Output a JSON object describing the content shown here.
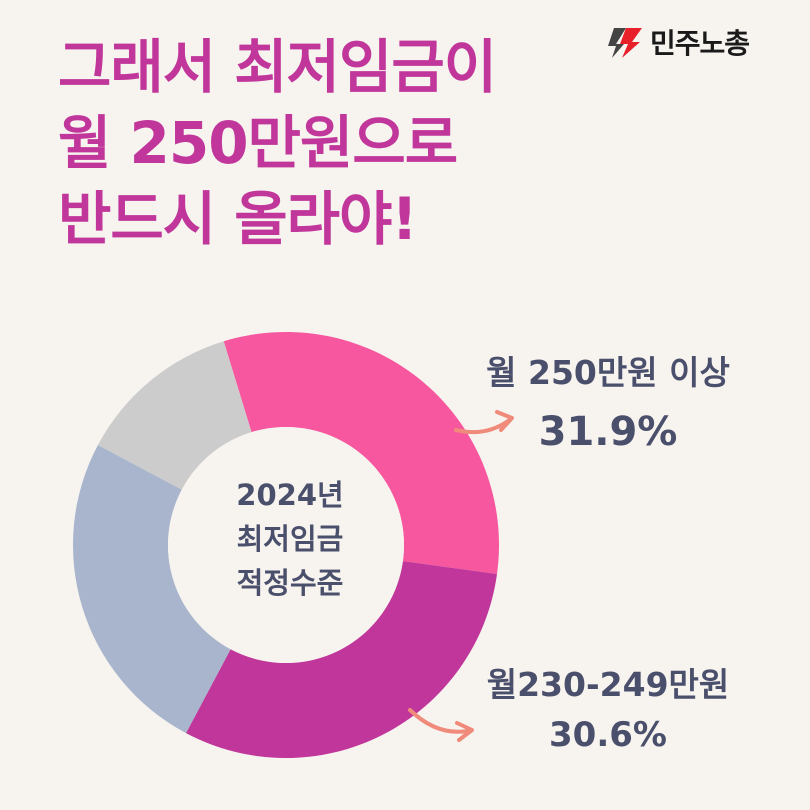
{
  "title": {
    "line1": "그래서 최저임금이",
    "line2": "월 250만원으로",
    "line3": "반드시 올라야!"
  },
  "logo": {
    "text": "민주노총",
    "icon": "kctu-logo-icon"
  },
  "colors": {
    "title": "#c0369a",
    "text": "#4a4f6b",
    "arrow": "#f08a7a",
    "background": "#f7f3ef"
  },
  "center_label": {
    "line1": "2024년",
    "line2": "최저임금",
    "line3": "적정수준"
  },
  "callouts": [
    {
      "label": "월 250만원 이상",
      "value": "31.9%"
    },
    {
      "label": "월230-249만원",
      "value": "30.6%"
    }
  ],
  "chart_data": {
    "type": "pie",
    "donut": true,
    "start_angle_deg": -17,
    "slices": [
      {
        "name": "월 250만원 이상",
        "value": 31.9,
        "color": "#f7579e"
      },
      {
        "name": "월230-249만원",
        "value": 30.6,
        "color": "#c0369a"
      },
      {
        "name": "",
        "value": 25.0,
        "color": "#a8b5cc"
      },
      {
        "name": "",
        "value": 12.5,
        "color": "#cccccc"
      }
    ]
  }
}
